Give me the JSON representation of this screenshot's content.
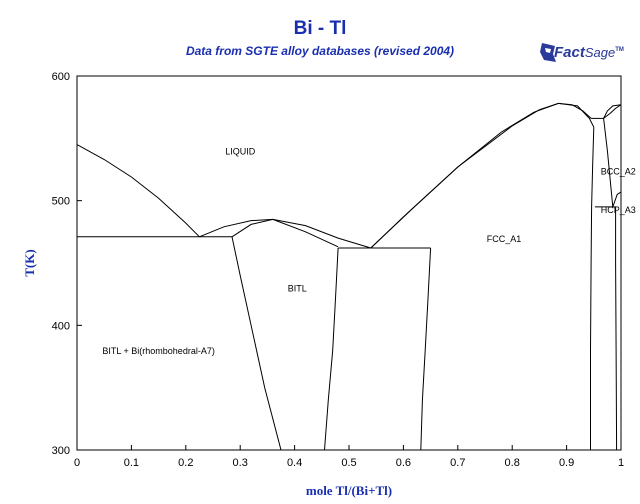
{
  "header": {
    "title": "Bi - Tl",
    "subtitle": "Data from SGTE alloy databases (revised 2004)",
    "logo": {
      "word1": "Fact",
      "word2": "Sage",
      "tm": "TM"
    }
  },
  "chart_data": {
    "type": "phase-diagram",
    "xlabel": "mole Tl/(Bi+Tl)",
    "ylabel": "T(K)",
    "xlim": [
      0,
      1
    ],
    "ylim": [
      300,
      600
    ],
    "x_ticks": [
      0,
      0.1,
      0.2,
      0.3,
      0.4,
      0.5,
      0.6,
      0.7,
      0.8,
      0.9,
      1
    ],
    "x_tick_labels": [
      "0",
      "0.1",
      "0.2",
      "0.3",
      "0.4",
      "0.5",
      "0.6",
      "0.7",
      "0.8",
      "0.9",
      "1"
    ],
    "y_ticks": [
      300,
      400,
      500,
      600
    ],
    "y_tick_labels": [
      "300",
      "400",
      "500",
      "600"
    ],
    "grid": false,
    "boundaries": [
      {
        "name": "liquidus-bi",
        "points": [
          [
            0,
            545
          ],
          [
            0.05,
            533
          ],
          [
            0.1,
            519
          ],
          [
            0.15,
            502
          ],
          [
            0.2,
            482
          ],
          [
            0.225,
            471
          ]
        ]
      },
      {
        "name": "liquidus-bitl",
        "points": [
          [
            0.225,
            471
          ],
          [
            0.27,
            479
          ],
          [
            0.32,
            484
          ],
          [
            0.36,
            485
          ],
          [
            0.42,
            480
          ],
          [
            0.48,
            470
          ],
          [
            0.54,
            462
          ]
        ]
      },
      {
        "name": "bitl-solvus-left-top",
        "points": [
          [
            0.285,
            471
          ],
          [
            0.32,
            481
          ],
          [
            0.36,
            485
          ]
        ]
      },
      {
        "name": "bitl-solvus-right-top",
        "points": [
          [
            0.36,
            485
          ],
          [
            0.42,
            475
          ],
          [
            0.48,
            463
          ]
        ]
      },
      {
        "name": "liquidus-fcc",
        "points": [
          [
            0.54,
            462
          ],
          [
            0.6,
            487
          ],
          [
            0.7,
            527
          ],
          [
            0.8,
            560
          ],
          [
            0.85,
            573
          ],
          [
            0.885,
            578
          ],
          [
            0.91,
            577
          ],
          [
            0.93,
            572
          ],
          [
            0.945,
            566
          ]
        ]
      },
      {
        "name": "solidus-fcc",
        "points": [
          [
            0.54,
            462
          ],
          [
            0.62,
            495
          ],
          [
            0.7,
            527
          ],
          [
            0.78,
            555
          ],
          [
            0.84,
            571
          ],
          [
            0.885,
            578
          ],
          [
            0.92,
            576
          ],
          [
            0.942,
            566
          ],
          [
            0.95,
            559
          ]
        ]
      },
      {
        "name": "liquidus-bcc",
        "points": [
          [
            0.968,
            566
          ],
          [
            0.975,
            572
          ],
          [
            0.985,
            576
          ],
          [
            1,
            577
          ]
        ]
      },
      {
        "name": "solidus-bcc",
        "points": [
          [
            0.968,
            566
          ],
          [
            0.98,
            570
          ],
          [
            0.99,
            574
          ],
          [
            1,
            577
          ]
        ]
      },
      {
        "name": "eutectic-bi-bitl",
        "points": [
          [
            0,
            471
          ],
          [
            0.285,
            471
          ]
        ]
      },
      {
        "name": "eutectic-bitl-fcc",
        "points": [
          [
            0.48,
            462
          ],
          [
            0.65,
            462
          ]
        ]
      },
      {
        "name": "peritectic-fcc-bcc",
        "points": [
          [
            0.945,
            566
          ],
          [
            0.968,
            566
          ]
        ]
      },
      {
        "name": "bitl-left",
        "points": [
          [
            0.285,
            471
          ],
          [
            0.3,
            440
          ],
          [
            0.32,
            400
          ],
          [
            0.345,
            350
          ],
          [
            0.375,
            300
          ]
        ]
      },
      {
        "name": "bitl-right",
        "points": [
          [
            0.48,
            462
          ],
          [
            0.475,
            420
          ],
          [
            0.47,
            380
          ],
          [
            0.462,
            340
          ],
          [
            0.455,
            300
          ]
        ]
      },
      {
        "name": "fcc-left",
        "points": [
          [
            0.65,
            462
          ],
          [
            0.645,
            420
          ],
          [
            0.64,
            380
          ],
          [
            0.635,
            340
          ],
          [
            0.632,
            300
          ]
        ]
      },
      {
        "name": "fcc-right",
        "points": [
          [
            0.95,
            559
          ],
          [
            0.948,
            530
          ],
          [
            0.946,
            495
          ],
          [
            0.945,
            450
          ],
          [
            0.944,
            380
          ],
          [
            0.944,
            300
          ]
        ]
      },
      {
        "name": "bcc-hcp-eutectoid",
        "points": [
          [
            0.952,
            495
          ],
          [
            0.99,
            495
          ]
        ]
      },
      {
        "name": "bcc-left",
        "points": [
          [
            0.968,
            566
          ],
          [
            0.975,
            540
          ],
          [
            0.985,
            495
          ]
        ]
      },
      {
        "name": "hcp-left",
        "points": [
          [
            0.99,
            495
          ],
          [
            0.99,
            450
          ],
          [
            0.991,
            380
          ],
          [
            0.992,
            300
          ]
        ]
      },
      {
        "name": "bcc-hcp-right",
        "points": [
          [
            0.985,
            495
          ],
          [
            0.993,
            505
          ],
          [
            1,
            507
          ]
        ]
      }
    ],
    "regions": [
      {
        "label": "LIQUID",
        "x": 0.3,
        "y": 537
      },
      {
        "label": "BITL",
        "x": 0.405,
        "y": 427
      },
      {
        "label": "BITL + Bi(rhombohedral-A7)",
        "x": 0.15,
        "y": 377
      },
      {
        "label": "FCC_A1",
        "x": 0.785,
        "y": 467
      },
      {
        "label": "BCC_A2",
        "x": 0.995,
        "y": 521
      },
      {
        "label": "HCP_A3",
        "x": 0.995,
        "y": 490
      }
    ]
  }
}
